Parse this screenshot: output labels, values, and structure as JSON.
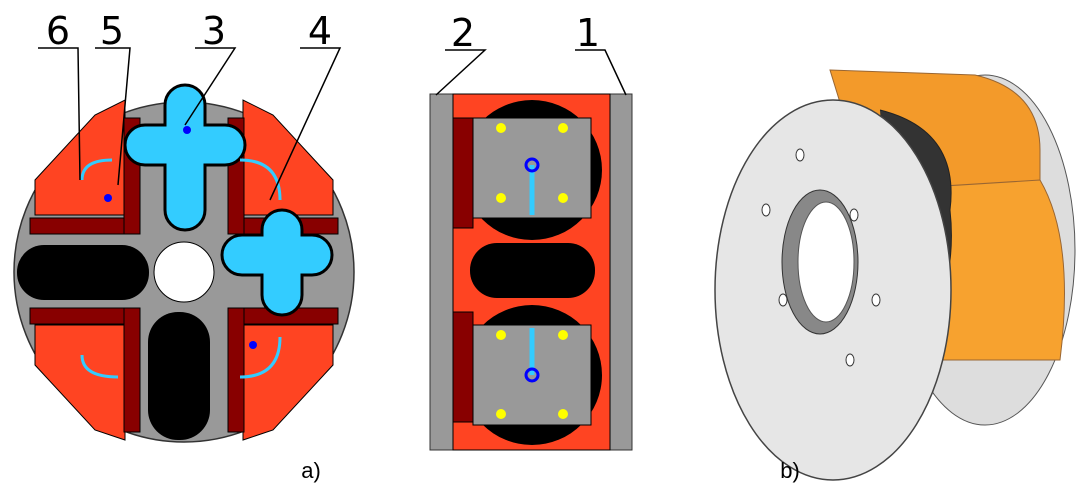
{
  "callouts": [
    "6",
    "5",
    "3",
    "4",
    "2",
    "1"
  ],
  "captions": [
    "a)",
    "b)"
  ]
}
